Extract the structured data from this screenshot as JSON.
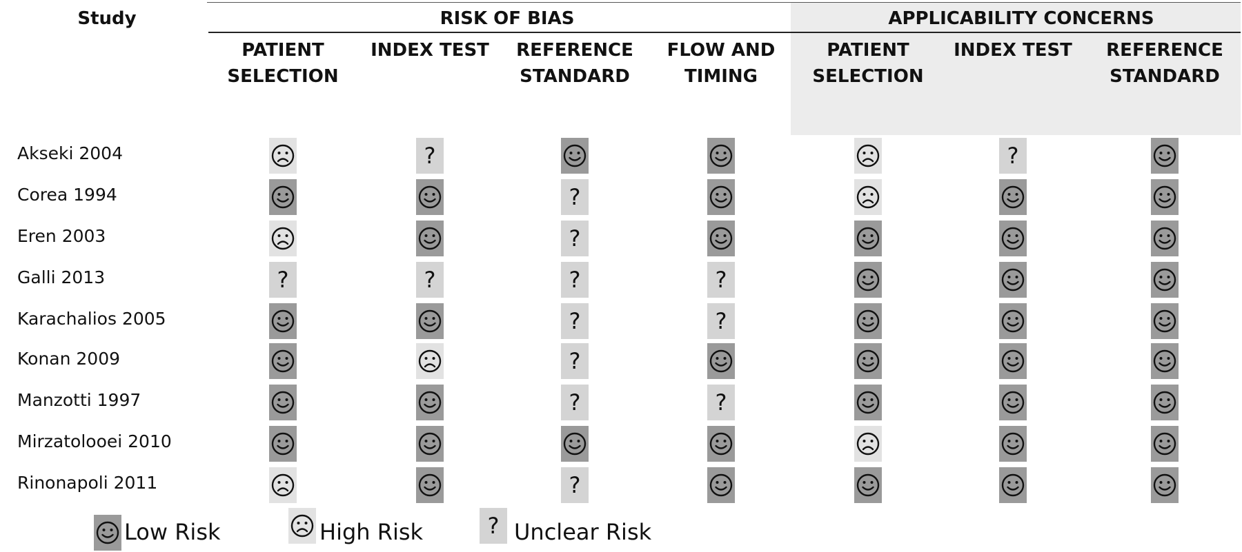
{
  "header": {
    "study": "Study",
    "risk_of_bias": "RISK OF BIAS",
    "applicability": "APPLICABILITY CONCERNS",
    "columns": [
      [
        "PATIENT",
        "SELECTION"
      ],
      [
        "INDEX TEST",
        ""
      ],
      [
        "REFERENCE",
        "STANDARD"
      ],
      [
        "FLOW AND",
        "TIMING"
      ],
      [
        "PATIENT",
        "SELECTION"
      ],
      [
        "INDEX TEST",
        ""
      ],
      [
        "REFERENCE",
        "STANDARD"
      ]
    ]
  },
  "studies": [
    {
      "name": "Akseki 2004",
      "ratings": [
        "high",
        "unclear",
        "low",
        "low",
        "high",
        "unclear",
        "low"
      ]
    },
    {
      "name": "Corea 1994",
      "ratings": [
        "low",
        "low",
        "unclear",
        "low",
        "high",
        "low",
        "low"
      ]
    },
    {
      "name": "Eren 2003",
      "ratings": [
        "high",
        "low",
        "unclear",
        "low",
        "low",
        "low",
        "low"
      ]
    },
    {
      "name": "Galli 2013",
      "ratings": [
        "unclear",
        "unclear",
        "unclear",
        "unclear",
        "low",
        "low",
        "low"
      ]
    },
    {
      "name": "Karachalios 2005",
      "ratings": [
        "low",
        "low",
        "unclear",
        "unclear",
        "low",
        "low",
        "low"
      ]
    },
    {
      "name": "Konan 2009",
      "ratings": [
        "low",
        "high",
        "unclear",
        "low",
        "low",
        "low",
        "low"
      ]
    },
    {
      "name": "Manzotti 1997",
      "ratings": [
        "low",
        "low",
        "unclear",
        "unclear",
        "low",
        "low",
        "low"
      ]
    },
    {
      "name": "Mirzatolooei 2010",
      "ratings": [
        "low",
        "low",
        "low",
        "low",
        "high",
        "low",
        "low"
      ]
    },
    {
      "name": "Rinonapoli 2011",
      "ratings": [
        "high",
        "low",
        "unclear",
        "low",
        "low",
        "low",
        "low"
      ]
    }
  ],
  "legend": {
    "low": "Low Risk",
    "high": "High Risk",
    "unclear": "Unclear Risk",
    "unclear_symbol": "?"
  },
  "colors": {
    "low": "#9a9a9a",
    "high": "#e2e2e2",
    "unclear": "#d4d4d4",
    "applicability_bg": "#ececec"
  },
  "icons": {
    "low": "smiley-face-icon",
    "high": "frowning-face-icon",
    "unclear": "question-mark-icon"
  }
}
